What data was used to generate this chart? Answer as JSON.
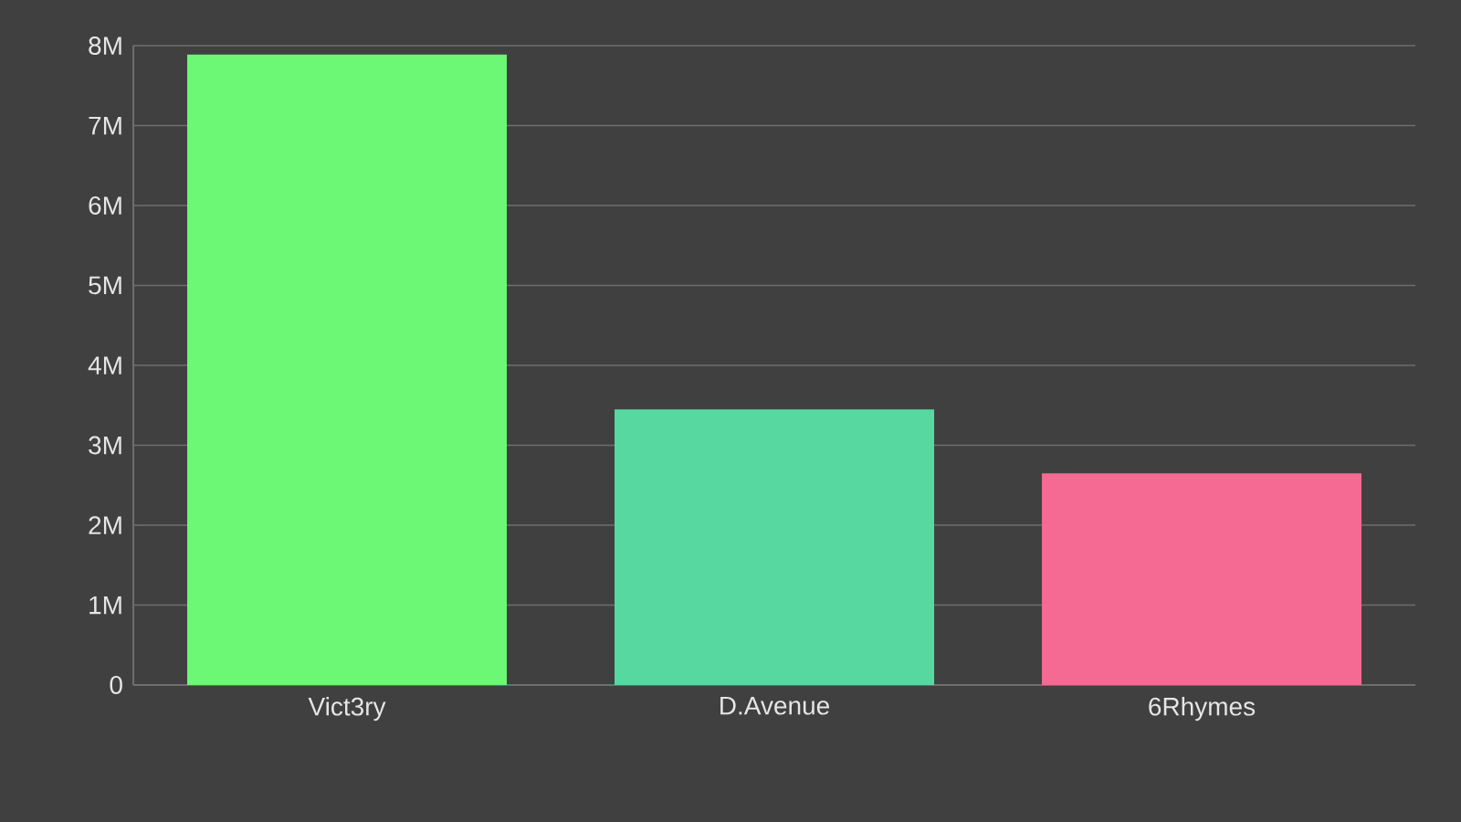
{
  "chart_data": {
    "type": "bar",
    "categories": [
      "Vict3ry",
      "D.Avenue",
      "6Rhymes"
    ],
    "values": [
      7890000,
      3450000,
      2650000
    ],
    "colors": [
      "#6cf774",
      "#57d8a0",
      "#f56a92"
    ],
    "ylim": [
      0,
      8000000
    ],
    "yticks": [
      0,
      {
        "value": 1000000,
        "label": "1M"
      },
      {
        "value": 2000000,
        "label": "2M"
      },
      {
        "value": 3000000,
        "label": "3M"
      },
      {
        "value": 4000000,
        "label": "4M"
      },
      {
        "value": 5000000,
        "label": "5M"
      },
      {
        "value": 6000000,
        "label": "6M"
      },
      {
        "value": 7000000,
        "label": "7M"
      },
      {
        "value": 8000000,
        "label": "8M"
      }
    ],
    "grid": "y"
  }
}
